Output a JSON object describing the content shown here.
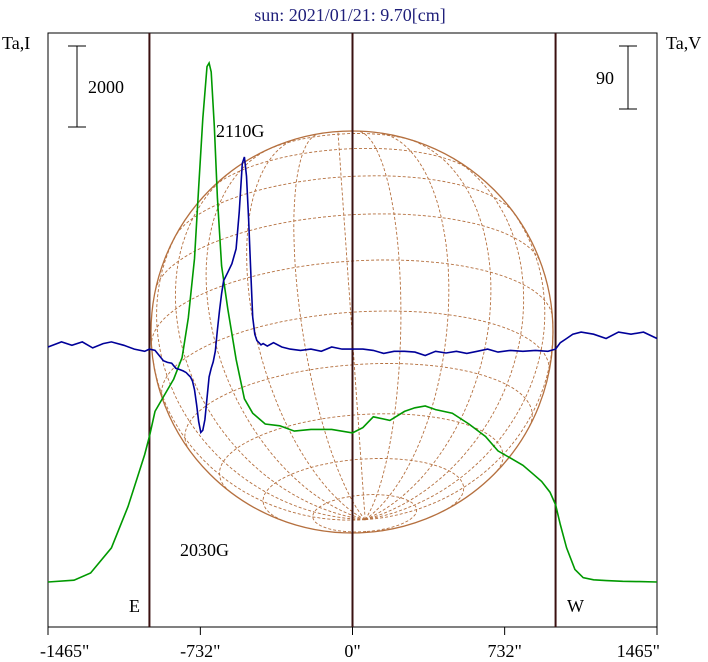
{
  "title": "sun: 2021/01/21: 9.70[cm]",
  "left_axis_label": "Ta,I",
  "right_axis_label": "Ta,V",
  "left_scale_label": "2000",
  "right_scale_label": "90",
  "east_label": "E",
  "west_label": "W",
  "annotations": {
    "peak": "2110G",
    "trough": "2030G"
  },
  "colors": {
    "intensity": "#009900",
    "polarization": "#000099",
    "limb_lines": "#3a1010",
    "disk_grid": "#b5703f"
  },
  "chart_data": {
    "type": "line",
    "title": "sun: 2021/01/21: 9.70[cm]",
    "xlabel": "",
    "ylabel": "Ta,I",
    "y2label": "Ta,V",
    "x_range": [
      -1465,
      1465
    ],
    "x_ticks": [
      -1465,
      -732,
      0,
      732,
      1465
    ],
    "x_tick_labels": [
      "-1465\"",
      "-732\"",
      "0\"",
      "732\"",
      "1465\""
    ],
    "vertical_lines": [
      -977,
      0,
      977
    ],
    "grid": false,
    "series": [
      {
        "id": "stokes_i",
        "axis": "left",
        "color": "#009900",
        "x": [
          -1465,
          -1340,
          -1260,
          -1160,
          -1080,
          -1030,
          -1000,
          -977,
          -950,
          -900,
          -860,
          -820,
          -790,
          -760,
          -740,
          -720,
          -700,
          -690,
          -680,
          -665,
          -650,
          -630,
          -600,
          -560,
          -520,
          -480,
          -420,
          -350,
          -280,
          -200,
          -100,
          0,
          50,
          100,
          180,
          250,
          300,
          350,
          400,
          480,
          560,
          640,
          700,
          760,
          820,
          870,
          910,
          950,
          977,
          1000,
          1030,
          1070,
          1110,
          1160,
          1220,
          1300,
          1380,
          1465
        ],
        "y": [
          0,
          50,
          250,
          950,
          2100,
          3000,
          3550,
          4050,
          4750,
          5250,
          5650,
          6250,
          7350,
          9000,
          11000,
          12900,
          14350,
          14450,
          14200,
          12700,
          10700,
          8800,
          7600,
          6200,
          5100,
          4700,
          4400,
          4350,
          4200,
          4250,
          4250,
          4150,
          4300,
          4600,
          4500,
          4750,
          4850,
          4900,
          4800,
          4700,
          4400,
          4050,
          3650,
          3450,
          3250,
          3000,
          2800,
          2500,
          2150,
          1600,
          950,
          350,
          120,
          60,
          40,
          20,
          10,
          0
        ]
      },
      {
        "id": "stokes_v",
        "axis": "right",
        "color": "#000099",
        "x": [
          -1465,
          -1400,
          -1350,
          -1300,
          -1250,
          -1200,
          -1160,
          -1100,
          -1050,
          -1000,
          -977,
          -950,
          -930,
          -910,
          -890,
          -870,
          -850,
          -835,
          -815,
          -800,
          -790,
          -780,
          -770,
          -760,
          -750,
          -740,
          -730,
          -720,
          -710,
          -700,
          -690,
          -680,
          -670,
          -660,
          -650,
          -640,
          -630,
          -620,
          -600,
          -580,
          -560,
          -545,
          -530,
          -520,
          -510,
          -500,
          -490,
          -480,
          -470,
          -460,
          -450,
          -440,
          -430,
          -410,
          -380,
          -340,
          -300,
          -250,
          -200,
          -150,
          -100,
          -50,
          0,
          50,
          100,
          150,
          200,
          250,
          300,
          350,
          400,
          450,
          500,
          550,
          600,
          650,
          700,
          760,
          820,
          880,
          940,
          977,
          1000,
          1030,
          1060,
          1100,
          1160,
          1220,
          1280,
          1340,
          1400,
          1465
        ],
        "y": [
          0,
          12,
          4,
          12,
          -2,
          8,
          12,
          4,
          -5,
          -10,
          -5,
          -8,
          -20,
          -32,
          -36,
          -38,
          -50,
          -52,
          -56,
          -60,
          -65,
          -70,
          -80,
          -100,
          -135,
          -175,
          -200,
          -195,
          -170,
          -120,
          -70,
          -50,
          -35,
          -10,
          40,
          85,
          125,
          155,
          175,
          195,
          230,
          315,
          430,
          445,
          400,
          300,
          180,
          70,
          30,
          15,
          10,
          5,
          8,
          2,
          10,
          0,
          -5,
          -8,
          -5,
          -10,
          0,
          -5,
          -5,
          -5,
          -8,
          -15,
          -10,
          -10,
          -12,
          -20,
          -10,
          -14,
          -10,
          -15,
          -10,
          -5,
          -12,
          -8,
          -10,
          -8,
          -10,
          -5,
          10,
          20,
          30,
          35,
          30,
          20,
          35,
          30,
          35,
          20
        ]
      }
    ]
  }
}
